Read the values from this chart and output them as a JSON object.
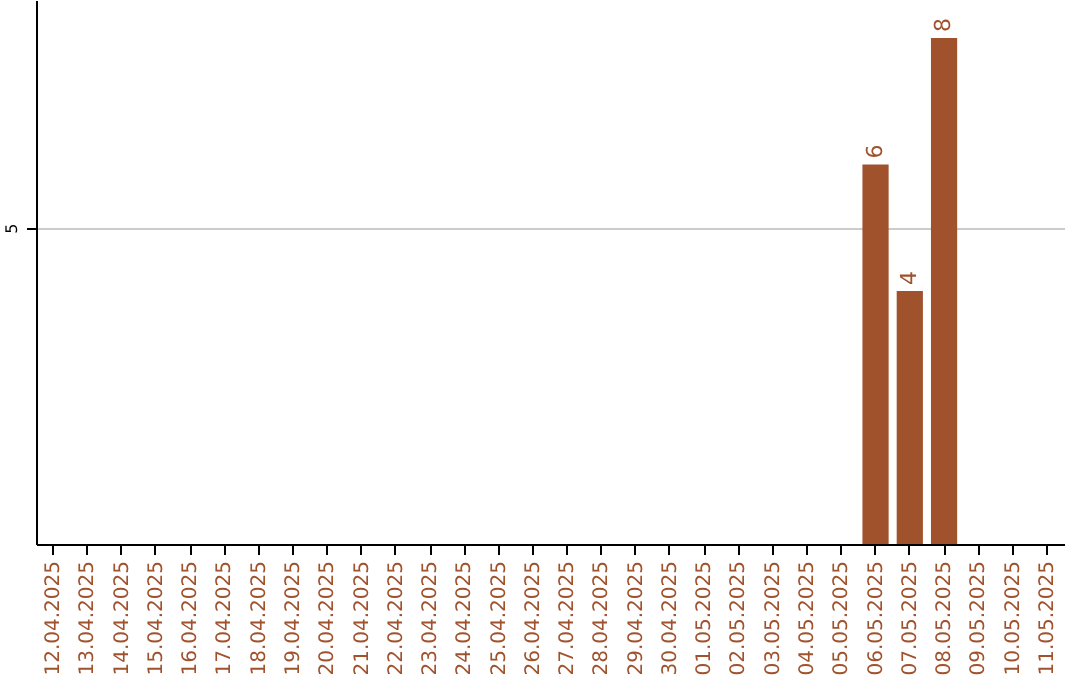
{
  "chart_data": {
    "type": "bar",
    "categories": [
      "12.04.2025",
      "13.04.2025",
      "14.04.2025",
      "15.04.2025",
      "16.04.2025",
      "17.04.2025",
      "18.04.2025",
      "19.04.2025",
      "20.04.2025",
      "21.04.2025",
      "22.04.2025",
      "23.04.2025",
      "24.04.2025",
      "25.04.2025",
      "26.04.2025",
      "27.04.2025",
      "28.04.2025",
      "29.04.2025",
      "30.04.2025",
      "01.05.2025",
      "02.05.2025",
      "03.05.2025",
      "04.05.2025",
      "05.05.2025",
      "06.05.2025",
      "07.05.2025",
      "08.05.2025",
      "09.05.2025",
      "10.05.2025",
      "11.05.2025"
    ],
    "values": [
      null,
      null,
      null,
      null,
      null,
      null,
      null,
      null,
      null,
      null,
      null,
      null,
      null,
      null,
      null,
      null,
      null,
      null,
      null,
      null,
      null,
      null,
      null,
      null,
      6,
      4,
      8,
      null,
      null,
      null
    ],
    "color": "#a0522d",
    "ylim": [
      0,
      8.6
    ],
    "yticks": [
      5
    ],
    "grid": "y",
    "data_labels": true
  }
}
